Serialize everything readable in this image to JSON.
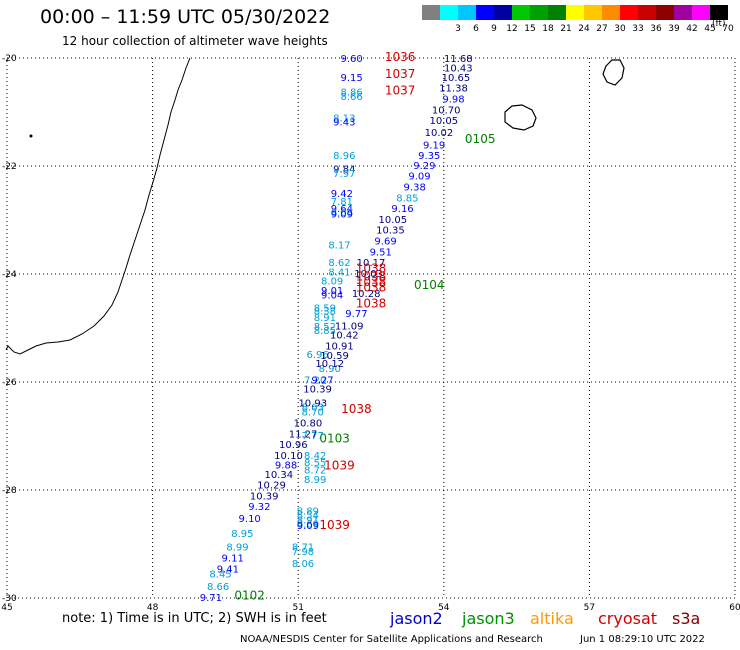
{
  "title": "00:00 – 11:59 UTC 05/30/2022",
  "subtitle": "12 hour collection of altimeter wave heights",
  "legend": {
    "unit": "(ft)",
    "levels": [
      {
        "label": "",
        "color": "#808080"
      },
      {
        "label": "3",
        "color": "#00ffff"
      },
      {
        "label": "6",
        "color": "#00c8ff"
      },
      {
        "label": "9",
        "color": "#0000ff"
      },
      {
        "label": "12",
        "color": "#0000a0"
      },
      {
        "label": "15",
        "color": "#00c800"
      },
      {
        "label": "18",
        "color": "#00a000"
      },
      {
        "label": "21",
        "color": "#008000"
      },
      {
        "label": "24",
        "color": "#ffff00"
      },
      {
        "label": "27",
        "color": "#ffc800"
      },
      {
        "label": "30",
        "color": "#ff8c00"
      },
      {
        "label": "33",
        "color": "#ff0000"
      },
      {
        "label": "36",
        "color": "#c80000"
      },
      {
        "label": "39",
        "color": "#8b0000"
      },
      {
        "label": "42",
        "color": "#a000a0"
      },
      {
        "label": "45",
        "color": "#ff00ff"
      },
      {
        "label": "70",
        "color": "#000000"
      }
    ]
  },
  "map": {
    "lon_range": [
      45,
      60
    ],
    "lat_range": [
      -30,
      -20
    ],
    "lon_ticks": [
      "45",
      "48",
      "51",
      "54",
      "57",
      "60"
    ],
    "lat_ticks": [
      "-20",
      "-22",
      "-24",
      "-26",
      "-28",
      "-30"
    ],
    "gridlines": true
  },
  "observations": [
    {
      "v": "9.60",
      "lon": 52.1,
      "lat": -20.0,
      "c": "#0000ff"
    },
    {
      "v": "9.15",
      "lon": 52.1,
      "lat": -20.35,
      "c": "#0000ff"
    },
    {
      "v": "8.86",
      "lon": 52.1,
      "lat": -20.62,
      "c": "#00a0d8"
    },
    {
      "v": "8.66",
      "lon": 52.1,
      "lat": -20.7,
      "c": "#00a0d8"
    },
    {
      "v": "8.13",
      "lon": 51.95,
      "lat": -21.1,
      "c": "#00a0d8"
    },
    {
      "v": "9.43",
      "lon": 51.95,
      "lat": -21.18,
      "c": "#0000ff"
    },
    {
      "v": "8.96",
      "lon": 51.95,
      "lat": -21.8,
      "c": "#00a0d8"
    },
    {
      "v": "9.84",
      "lon": 51.95,
      "lat": -22.05,
      "c": "#000080"
    },
    {
      "v": "7.97",
      "lon": 51.95,
      "lat": -22.13,
      "c": "#00a0d8"
    },
    {
      "v": "9.42",
      "lon": 51.9,
      "lat": -22.5,
      "c": "#0000ff"
    },
    {
      "v": "7.81",
      "lon": 51.9,
      "lat": -22.65,
      "c": "#00a0d8"
    },
    {
      "v": "9.64",
      "lon": 51.9,
      "lat": -22.78,
      "c": "#0000ff"
    },
    {
      "v": "8.68",
      "lon": 51.9,
      "lat": -22.85,
      "c": "#00a0d8"
    },
    {
      "v": "9.09",
      "lon": 51.9,
      "lat": -22.88,
      "c": "#0000ff"
    },
    {
      "v": "8.17",
      "lon": 51.85,
      "lat": -23.45,
      "c": "#00a0d8"
    },
    {
      "v": "8.62",
      "lon": 51.85,
      "lat": -23.78,
      "c": "#00a0d8"
    },
    {
      "v": "8.41",
      "lon": 51.85,
      "lat": -23.95,
      "c": "#00a0d8"
    },
    {
      "v": "8.09",
      "lon": 51.7,
      "lat": -24.12,
      "c": "#00a0d8"
    },
    {
      "v": "9.01",
      "lon": 51.7,
      "lat": -24.3,
      "c": "#0000ff"
    },
    {
      "v": "9.04",
      "lon": 51.7,
      "lat": -24.38,
      "c": "#0000ff"
    },
    {
      "v": "8.59",
      "lon": 51.55,
      "lat": -24.62,
      "c": "#00a0d8"
    },
    {
      "v": "8.38",
      "lon": 51.55,
      "lat": -24.68,
      "c": "#00a0d8"
    },
    {
      "v": "8.91",
      "lon": 51.55,
      "lat": -24.8,
      "c": "#00a0d8"
    },
    {
      "v": "8.52",
      "lon": 51.55,
      "lat": -24.96,
      "c": "#00a0d8"
    },
    {
      "v": "8.85",
      "lon": 51.55,
      "lat": -25.04,
      "c": "#00a0d8"
    },
    {
      "v": "6.96",
      "lon": 51.4,
      "lat": -25.48,
      "c": "#00a0d8"
    },
    {
      "v": "8.90",
      "lon": 51.65,
      "lat": -25.74,
      "c": "#00a0d8"
    },
    {
      "v": "7.20",
      "lon": 51.35,
      "lat": -25.95,
      "c": "#00a0d8"
    },
    {
      "v": "8.63",
      "lon": 51.3,
      "lat": -26.45,
      "c": "#00a0d8"
    },
    {
      "v": "8.70",
      "lon": 51.3,
      "lat": -26.55,
      "c": "#00a0d8"
    },
    {
      "v": "7.77",
      "lon": 51.3,
      "lat": -26.98,
      "c": "#00a0d8"
    },
    {
      "v": "8.42",
      "lon": 51.35,
      "lat": -27.35,
      "c": "#00a0d8"
    },
    {
      "v": "8.55",
      "lon": 51.35,
      "lat": -27.48,
      "c": "#00a0d8"
    },
    {
      "v": "8.72",
      "lon": 51.35,
      "lat": -27.62,
      "c": "#00a0d8"
    },
    {
      "v": "8.99",
      "lon": 51.35,
      "lat": -27.8,
      "c": "#00a0d8"
    },
    {
      "v": "8.89",
      "lon": 51.2,
      "lat": -28.38,
      "c": "#00a0d8"
    },
    {
      "v": "8.54",
      "lon": 51.2,
      "lat": -28.45,
      "c": "#00a0d8"
    },
    {
      "v": "8.91",
      "lon": 51.2,
      "lat": -28.55,
      "c": "#00a0d8"
    },
    {
      "v": "8.69",
      "lon": 51.2,
      "lat": -28.62,
      "c": "#00a0d8"
    },
    {
      "v": "8.71",
      "lon": 51.1,
      "lat": -29.05,
      "c": "#00a0d8"
    },
    {
      "v": "7.98",
      "lon": 51.1,
      "lat": -29.13,
      "c": "#00a0d8"
    },
    {
      "v": "8.06",
      "lon": 51.1,
      "lat": -29.35,
      "c": "#00a0d8"
    },
    {
      "v": "8.95",
      "lon": 49.85,
      "lat": -28.8,
      "c": "#00a0d8"
    },
    {
      "v": "8.99",
      "lon": 49.75,
      "lat": -29.05,
      "c": "#00a0d8"
    },
    {
      "v": "8.45",
      "lon": 49.4,
      "lat": -29.55,
      "c": "#00a0d8"
    },
    {
      "v": "8.66",
      "lon": 49.35,
      "lat": -29.78,
      "c": "#00a0d8"
    },
    {
      "v": "9.71",
      "lon": 49.2,
      "lat": -29.98,
      "c": "#0000ff"
    },
    {
      "v": "11.68",
      "lon": 54.3,
      "lat": -20.0,
      "c": "#000080"
    },
    {
      "v": "10.43",
      "lon": 54.3,
      "lat": -20.18,
      "c": "#000080"
    },
    {
      "v": "10.65",
      "lon": 54.25,
      "lat": -20.35,
      "c": "#000080"
    },
    {
      "v": "11.38",
      "lon": 54.2,
      "lat": -20.55,
      "c": "#000080"
    },
    {
      "v": "9.98",
      "lon": 54.2,
      "lat": -20.75,
      "c": "#0000ff"
    },
    {
      "v": "10.70",
      "lon": 54.05,
      "lat": -20.95,
      "c": "#000080"
    },
    {
      "v": "10.05",
      "lon": 54.0,
      "lat": -21.15,
      "c": "#000080"
    },
    {
      "v": "10.02",
      "lon": 53.9,
      "lat": -21.37,
      "c": "#000080"
    },
    {
      "v": "9.19",
      "lon": 53.8,
      "lat": -21.6,
      "c": "#0000ff"
    },
    {
      "v": "9.35",
      "lon": 53.7,
      "lat": -21.8,
      "c": "#0000ff"
    },
    {
      "v": "9.29",
      "lon": 53.6,
      "lat": -21.98,
      "c": "#0000ff"
    },
    {
      "v": "9.09",
      "lon": 53.5,
      "lat": -22.18,
      "c": "#0000ff"
    },
    {
      "v": "9.38",
      "lon": 53.4,
      "lat": -22.38,
      "c": "#0000ff"
    },
    {
      "v": "8.85",
      "lon": 53.25,
      "lat": -22.58,
      "c": "#00a0d8"
    },
    {
      "v": "9.16",
      "lon": 53.15,
      "lat": -22.78,
      "c": "#0000ff"
    },
    {
      "v": "10.05",
      "lon": 52.95,
      "lat": -22.98,
      "c": "#000080"
    },
    {
      "v": "10.35",
      "lon": 52.9,
      "lat": -23.18,
      "c": "#000080"
    },
    {
      "v": "9.69",
      "lon": 52.8,
      "lat": -23.38,
      "c": "#0000ff"
    },
    {
      "v": "9.51",
      "lon": 52.7,
      "lat": -23.58,
      "c": "#0000ff"
    },
    {
      "v": "10.17",
      "lon": 52.5,
      "lat": -23.78,
      "c": "#000080"
    },
    {
      "v": "10.03",
      "lon": 52.45,
      "lat": -23.98,
      "c": "#000080"
    },
    {
      "v": "10.28",
      "lon": 52.4,
      "lat": -24.35,
      "c": "#000080"
    },
    {
      "v": "9.77",
      "lon": 52.2,
      "lat": -24.72,
      "c": "#0000ff"
    },
    {
      "v": "11.09",
      "lon": 52.05,
      "lat": -24.95,
      "c": "#000080"
    },
    {
      "v": "10.42",
      "lon": 51.95,
      "lat": -25.12,
      "c": "#000080"
    },
    {
      "v": "10.91",
      "lon": 51.85,
      "lat": -25.32,
      "c": "#000080"
    },
    {
      "v": "10.59",
      "lon": 51.75,
      "lat": -25.5,
      "c": "#000080"
    },
    {
      "v": "10.12",
      "lon": 51.65,
      "lat": -25.65,
      "c": "#000080"
    },
    {
      "v": "9.27",
      "lon": 51.5,
      "lat": -25.95,
      "c": "#0000ff"
    },
    {
      "v": "10.39",
      "lon": 51.4,
      "lat": -26.12,
      "c": "#000080"
    },
    {
      "v": "10.93",
      "lon": 51.3,
      "lat": -26.38,
      "c": "#000080"
    },
    {
      "v": "10.80",
      "lon": 51.2,
      "lat": -26.75,
      "c": "#000080"
    },
    {
      "v": "11.27",
      "lon": 51.1,
      "lat": -26.95,
      "c": "#000080"
    },
    {
      "v": "10.96",
      "lon": 50.9,
      "lat": -27.15,
      "c": "#000080"
    },
    {
      "v": "10.10",
      "lon": 50.8,
      "lat": -27.35,
      "c": "#000080"
    },
    {
      "v": "9.88",
      "lon": 50.75,
      "lat": -27.53,
      "c": "#0000ff"
    },
    {
      "v": "10.34",
      "lon": 50.6,
      "lat": -27.7,
      "c": "#000080"
    },
    {
      "v": "10.29",
      "lon": 50.45,
      "lat": -27.9,
      "c": "#000080"
    },
    {
      "v": "10.39",
      "lon": 50.3,
      "lat": -28.1,
      "c": "#000080"
    },
    {
      "v": "9.32",
      "lon": 50.2,
      "lat": -28.3,
      "c": "#0000ff"
    },
    {
      "v": "9.10",
      "lon": 50.0,
      "lat": -28.52,
      "c": "#0000ff"
    },
    {
      "v": "9.09",
      "lon": 51.2,
      "lat": -28.65,
      "c": "#0000ff"
    },
    {
      "v": "9.11",
      "lon": 49.65,
      "lat": -29.25,
      "c": "#0000ff"
    },
    {
      "v": "9.41",
      "lon": 49.55,
      "lat": -29.45,
      "c": "#0000ff"
    }
  ],
  "pass_labels": [
    {
      "t": "1036",
      "lon": 53.1,
      "lat": -19.98,
      "c": "#d00000"
    },
    {
      "t": "1037",
      "lon": 53.1,
      "lat": -20.3,
      "c": "#d00000"
    },
    {
      "t": "1037",
      "lon": 53.1,
      "lat": -20.6,
      "c": "#d00000"
    },
    {
      "t": "0105",
      "lon": 54.75,
      "lat": -21.5,
      "c": "#008000"
    },
    {
      "t": "1038",
      "lon": 52.5,
      "lat": -23.9,
      "c": "#d00000"
    },
    {
      "t": "1038",
      "lon": 52.5,
      "lat": -24.05,
      "c": "#d00000"
    },
    {
      "t": "1038",
      "lon": 52.5,
      "lat": -24.15,
      "c": "#d00000"
    },
    {
      "t": "1038",
      "lon": 52.5,
      "lat": -24.25,
      "c": "#d00000"
    },
    {
      "t": "1038",
      "lon": 52.5,
      "lat": -24.55,
      "c": "#d00000"
    },
    {
      "t": "0104",
      "lon": 53.7,
      "lat": -24.2,
      "c": "#008000"
    },
    {
      "t": "1038",
      "lon": 52.2,
      "lat": -26.5,
      "c": "#d00000"
    },
    {
      "t": "0103",
      "lon": 51.75,
      "lat": -27.05,
      "c": "#008000"
    },
    {
      "t": "1039",
      "lon": 51.85,
      "lat": -27.55,
      "c": "#d00000"
    },
    {
      "t": "1039",
      "lon": 51.75,
      "lat": -28.65,
      "c": "#d00000"
    },
    {
      "t": "0102",
      "lon": 50.0,
      "lat": -29.95,
      "c": "#008000"
    }
  ],
  "missions": [
    {
      "name": "jason2",
      "color": "#0000cc"
    },
    {
      "name": "jason3",
      "color": "#009000"
    },
    {
      "name": "altika",
      "color": "#ff9900"
    },
    {
      "name": "cryosat",
      "color": "#d00000"
    },
    {
      "name": "s3a",
      "color": "#800000"
    }
  ],
  "note": "note: 1) Time is in UTC; 2) SWH is in feet",
  "credit": "NOAA/NESDIS Center for Satellite Applications and Research",
  "timestamp": "Jun  1 08:29:10 UTC 2022"
}
